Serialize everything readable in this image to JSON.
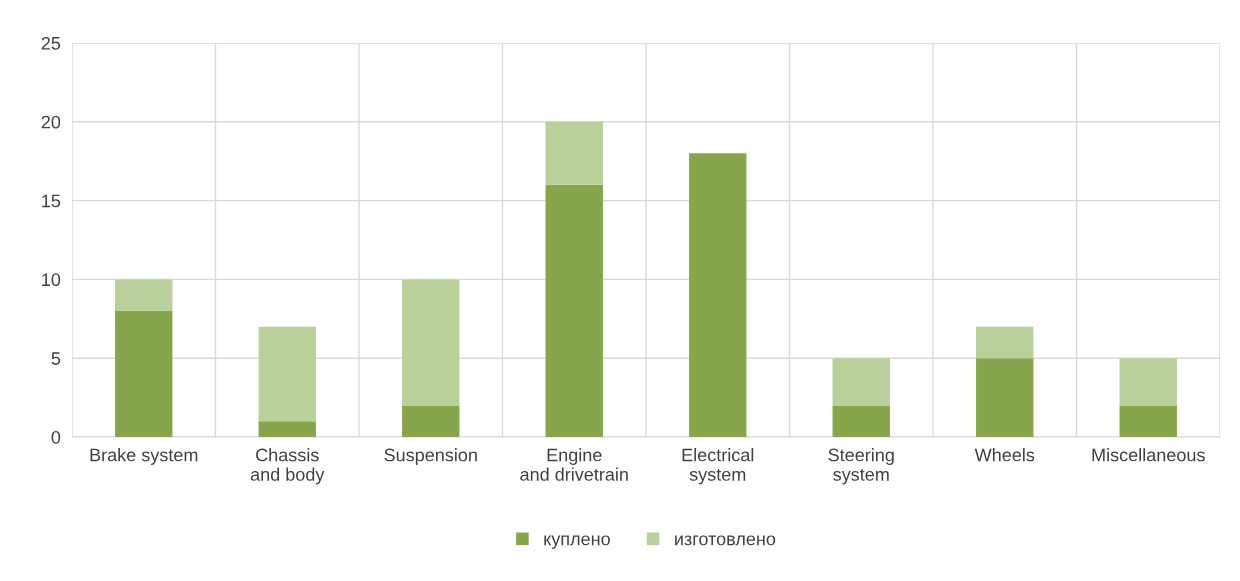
{
  "chart_data": {
    "type": "bar",
    "stacked": true,
    "categories": [
      "Brake system",
      "Chassis and body",
      "Suspension",
      "Engine and drivetrain",
      "Electrical system",
      "Steering system",
      "Wheels",
      "Miscellaneous"
    ],
    "series": [
      {
        "name": "куплено",
        "color": "#87a64b",
        "values": [
          8,
          1,
          2,
          16,
          18,
          2,
          5,
          2
        ]
      },
      {
        "name": "изготовлено",
        "color": "#b9d09a",
        "values": [
          2,
          6,
          8,
          4,
          0,
          3,
          2,
          3
        ]
      }
    ],
    "ylim": [
      0,
      25
    ],
    "yticks": [
      0,
      5,
      10,
      15,
      20,
      25
    ],
    "grid": true,
    "legend": "bottom"
  }
}
